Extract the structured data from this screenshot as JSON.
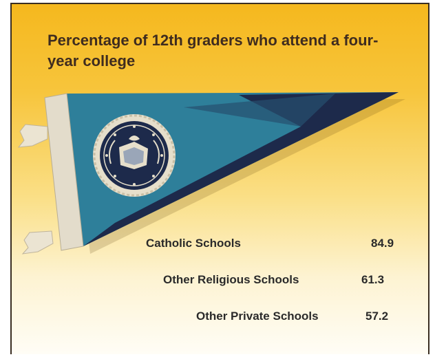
{
  "chart_data": {
    "type": "table",
    "title": "Percentage of 12th graders who attend a four-year college",
    "categories": [
      "Catholic Schools",
      "Other Religious Schools",
      "Other Private Schools"
    ],
    "values": [
      84.9,
      61.3,
      57.2
    ],
    "value_labels": [
      "84.9",
      "61.3",
      "57.2"
    ]
  },
  "colors": {
    "background_top": "#f5b81e",
    "background_bottom": "#fffdf6",
    "pennant_blue": "#2e7f9a",
    "pennant_navy": "#1d2a4b",
    "pennant_band": "#e3dccb"
  },
  "icons": {
    "pennant": "college-pennant-icon",
    "seal": "school-seal-icon"
  }
}
